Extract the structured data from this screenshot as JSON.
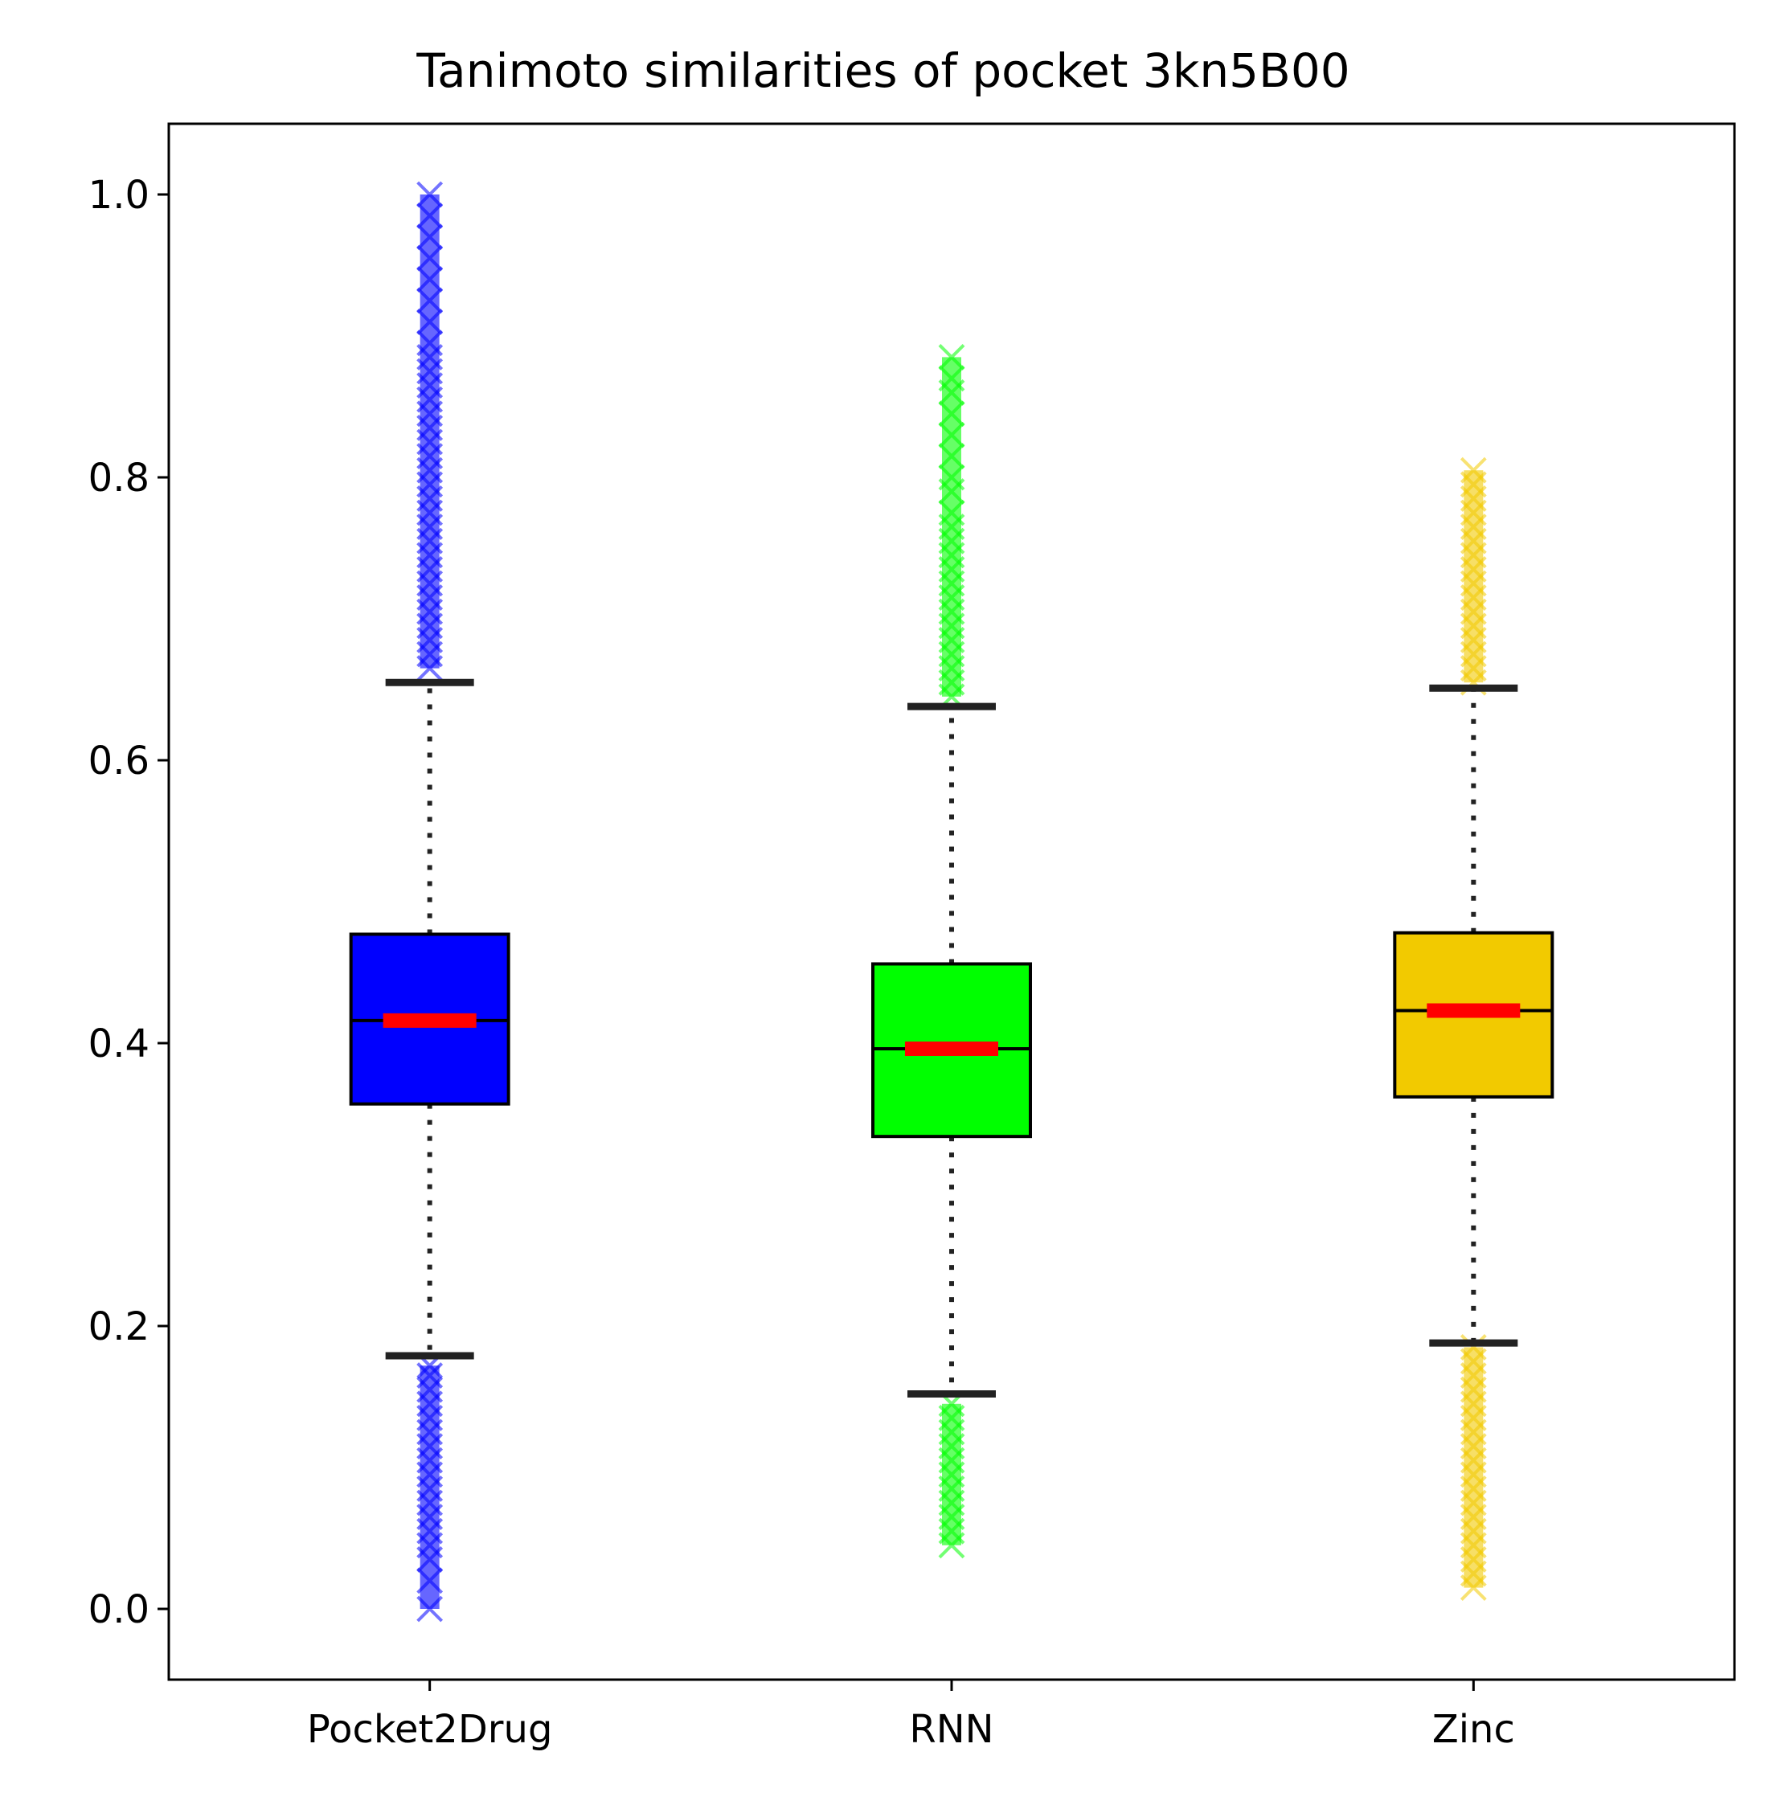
{
  "chart_data": {
    "type": "box",
    "title": "Tanimoto similarities of pocket 3kn5B00",
    "xlabel": "",
    "ylabel": "",
    "ylim": [
      -0.05,
      1.05
    ],
    "yticks": [
      {
        "value": 0.0,
        "label": "0.0"
      },
      {
        "value": 0.2,
        "label": "0.2"
      },
      {
        "value": 0.4,
        "label": "0.4"
      },
      {
        "value": 0.6,
        "label": "0.6"
      },
      {
        "value": 0.8,
        "label": "0.8"
      },
      {
        "value": 1.0,
        "label": "1.0"
      }
    ],
    "grid": false,
    "categories": [
      "Pocket2Drug",
      "RNN",
      "Zinc"
    ],
    "series": [
      {
        "category": "Pocket2Drug",
        "color": "#0000ff",
        "q1": 0.357,
        "median": 0.416,
        "q3": 0.477,
        "whisker_low": 0.179,
        "whisker_high": 0.655,
        "outliers_low": [
          0.0,
          0.02,
          0.035,
          0.045,
          0.055,
          0.065,
          0.075,
          0.085,
          0.095,
          0.105,
          0.115,
          0.125,
          0.135,
          0.145,
          0.155,
          0.165,
          0.172
        ],
        "outliers_high": [
          0.665,
          0.675,
          0.685,
          0.695,
          0.705,
          0.715,
          0.725,
          0.735,
          0.745,
          0.755,
          0.765,
          0.775,
          0.785,
          0.795,
          0.805,
          0.815,
          0.825,
          0.835,
          0.845,
          0.855,
          0.865,
          0.875,
          0.885,
          0.895,
          0.91,
          0.925,
          0.94,
          0.955,
          0.97,
          0.985,
          1.0
        ]
      },
      {
        "category": "RNN",
        "color": "#00ff00",
        "q1": 0.334,
        "median": 0.396,
        "q3": 0.456,
        "whisker_low": 0.152,
        "whisker_high": 0.638,
        "outliers_low": [
          0.045,
          0.055,
          0.065,
          0.075,
          0.085,
          0.095,
          0.105,
          0.115,
          0.125,
          0.135,
          0.145
        ],
        "outliers_high": [
          0.645,
          0.655,
          0.665,
          0.675,
          0.685,
          0.695,
          0.705,
          0.715,
          0.725,
          0.735,
          0.745,
          0.755,
          0.765,
          0.775,
          0.79,
          0.8,
          0.815,
          0.83,
          0.845,
          0.86,
          0.87,
          0.885
        ]
      },
      {
        "category": "Zinc",
        "color": "#f2ca00",
        "q1": 0.362,
        "median": 0.423,
        "q3": 0.478,
        "whisker_low": 0.188,
        "whisker_high": 0.651,
        "outliers_low": [
          0.015,
          0.025,
          0.035,
          0.045,
          0.055,
          0.065,
          0.075,
          0.085,
          0.095,
          0.105,
          0.115,
          0.125,
          0.135,
          0.145,
          0.155,
          0.165,
          0.175,
          0.185
        ],
        "outliers_high": [
          0.655,
          0.665,
          0.675,
          0.685,
          0.695,
          0.705,
          0.715,
          0.725,
          0.735,
          0.745,
          0.755,
          0.765,
          0.775,
          0.785,
          0.795,
          0.805
        ]
      }
    ],
    "median_color": "#ff0000"
  }
}
